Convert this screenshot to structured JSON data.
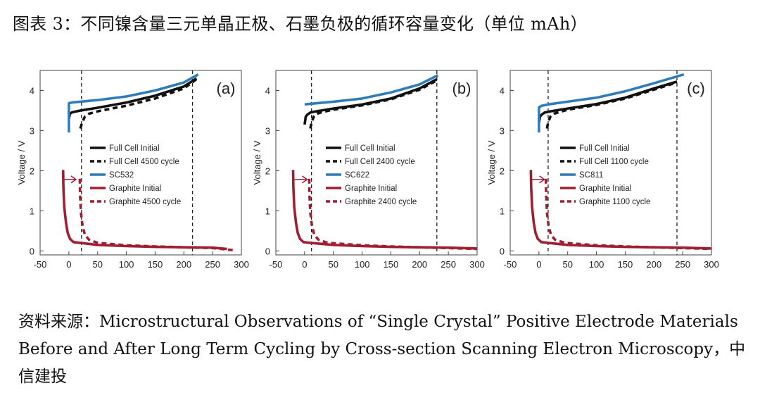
{
  "title": "图表 3：不同镍含量三元单晶正极、石墨负极的循环容量变化（单位 mAh）",
  "source": "资料来源：Microstructural Observations of “Single Crystal” Positive Electrode Materials Before and After Long Term Cycling by Cross-section Scanning Electron Microscopy，中信建投",
  "colors": {
    "black": "#111111",
    "blue": "#2e7db8",
    "red": "#a01e32"
  },
  "chart_data": [
    {
      "type": "line",
      "panel_label": "(a)",
      "ylabel": "Voltage / V",
      "xlim": [
        -50,
        300
      ],
      "ylim": [
        -0.1,
        4.5
      ],
      "xticks": [
        "-50",
        "0",
        "50",
        "100",
        "150",
        "200",
        "250",
        "300"
      ],
      "yticks": [
        "0",
        "1",
        "2",
        "3",
        "4"
      ],
      "vlines": [
        22,
        215
      ],
      "arrow": {
        "x": 5,
        "y": 1.78
      },
      "series": [
        {
          "name": "Full Cell Initial",
          "color": "#111111",
          "dashed": false,
          "x": [
            0,
            2,
            5,
            10,
            20,
            50,
            100,
            150,
            200,
            222
          ],
          "y": [
            3.3,
            3.42,
            3.45,
            3.47,
            3.5,
            3.57,
            3.7,
            3.87,
            4.1,
            4.3
          ]
        },
        {
          "name": "Full Cell 4500 cycle",
          "color": "#111111",
          "dashed": true,
          "x": [
            20,
            23,
            28,
            35,
            50,
            100,
            150,
            200,
            222
          ],
          "y": [
            3.05,
            3.2,
            3.35,
            3.42,
            3.48,
            3.62,
            3.8,
            4.05,
            4.28
          ]
        },
        {
          "name": "SC532",
          "color": "#2e7db8",
          "dashed": false,
          "x": [
            0,
            0,
            5,
            20,
            50,
            100,
            150,
            200,
            225
          ],
          "y": [
            2.95,
            3.68,
            3.7,
            3.72,
            3.76,
            3.85,
            4.0,
            4.2,
            4.4
          ]
        },
        {
          "name": "Graphite Initial",
          "color": "#a01e32",
          "dashed": false,
          "x": [
            -10,
            -9.5,
            -8,
            -5,
            -2,
            2,
            8,
            20,
            50,
            100,
            150,
            200,
            250,
            275
          ],
          "y": [
            2.02,
            1.6,
            1.1,
            0.7,
            0.45,
            0.3,
            0.22,
            0.2,
            0.15,
            0.12,
            0.1,
            0.09,
            0.08,
            0.05
          ]
        },
        {
          "name": "Graphite 4500 cycle",
          "color": "#a01e32",
          "dashed": true,
          "x": [
            19,
            19.5,
            21,
            24,
            28,
            35,
            50,
            100,
            150,
            200,
            250,
            285
          ],
          "y": [
            1.8,
            1.4,
            0.95,
            0.6,
            0.4,
            0.28,
            0.2,
            0.14,
            0.11,
            0.09,
            0.07,
            0.02
          ]
        }
      ]
    },
    {
      "type": "line",
      "panel_label": "(b)",
      "ylabel": "Voltage / V",
      "xlim": [
        -50,
        300
      ],
      "ylim": [
        -0.1,
        4.5
      ],
      "xticks": [
        "-50",
        "0",
        "50",
        "100",
        "150",
        "200",
        "250",
        "300"
      ],
      "yticks": [
        "0",
        "1",
        "2",
        "3",
        "4"
      ],
      "vlines": [
        12,
        230
      ],
      "arrow": {
        "x": -3,
        "y": 1.78
      },
      "series": [
        {
          "name": "Full Cell Initial",
          "color": "#111111",
          "dashed": false,
          "x": [
            0,
            2,
            5,
            10,
            20,
            50,
            100,
            150,
            200,
            230
          ],
          "y": [
            3.15,
            3.35,
            3.4,
            3.45,
            3.48,
            3.55,
            3.65,
            3.8,
            4.05,
            4.28
          ]
        },
        {
          "name": "Full Cell 2400 cycle",
          "color": "#111111",
          "dashed": true,
          "x": [
            10,
            12,
            16,
            22,
            30,
            50,
            100,
            150,
            200,
            230
          ],
          "y": [
            3.05,
            3.2,
            3.35,
            3.42,
            3.46,
            3.52,
            3.63,
            3.78,
            4.02,
            4.25
          ]
        },
        {
          "name": "SC622",
          "color": "#2e7db8",
          "dashed": false,
          "x": [
            0,
            5,
            20,
            50,
            100,
            150,
            200,
            232
          ],
          "y": [
            3.65,
            3.66,
            3.68,
            3.72,
            3.8,
            3.95,
            4.15,
            4.38
          ]
        },
        {
          "name": "Graphite Initial",
          "color": "#a01e32",
          "dashed": false,
          "x": [
            -20,
            -19.5,
            -18,
            -15,
            -12,
            -8,
            -2,
            10,
            50,
            100,
            150,
            200,
            250,
            300
          ],
          "y": [
            2.02,
            1.6,
            1.1,
            0.7,
            0.45,
            0.3,
            0.22,
            0.2,
            0.15,
            0.12,
            0.1,
            0.09,
            0.08,
            0.06
          ]
        },
        {
          "name": "Graphite 2400 cycle",
          "color": "#a01e32",
          "dashed": true,
          "x": [
            8,
            8.5,
            10,
            13,
            17,
            24,
            40,
            100,
            150,
            200,
            250,
            300
          ],
          "y": [
            1.8,
            1.4,
            0.95,
            0.6,
            0.4,
            0.28,
            0.2,
            0.14,
            0.11,
            0.09,
            0.07,
            0.05
          ]
        }
      ]
    },
    {
      "type": "line",
      "panel_label": "(c)",
      "ylabel": "Voltage / V",
      "xlim": [
        -50,
        300
      ],
      "ylim": [
        -0.1,
        4.5
      ],
      "xticks": [
        "-50",
        "0",
        "50",
        "100",
        "150",
        "200",
        "250",
        "300"
      ],
      "yticks": [
        "0",
        "1",
        "2",
        "3",
        "4"
      ],
      "vlines": [
        16,
        240
      ],
      "arrow": {
        "x": 2,
        "y": 1.78
      },
      "series": [
        {
          "name": "Full Cell Initial",
          "color": "#111111",
          "dashed": false,
          "x": [
            0,
            2,
            5,
            10,
            20,
            50,
            100,
            150,
            200,
            240
          ],
          "y": [
            3.2,
            3.35,
            3.4,
            3.45,
            3.48,
            3.55,
            3.66,
            3.82,
            4.05,
            4.22
          ]
        },
        {
          "name": "Full Cell 1100 cycle",
          "color": "#111111",
          "dashed": true,
          "x": [
            14,
            16,
            20,
            26,
            35,
            50,
            100,
            150,
            200,
            240
          ],
          "y": [
            3.05,
            3.2,
            3.35,
            3.42,
            3.46,
            3.52,
            3.64,
            3.8,
            4.02,
            4.2
          ]
        },
        {
          "name": "SC811",
          "color": "#2e7db8",
          "dashed": false,
          "x": [
            0,
            0,
            5,
            20,
            50,
            100,
            150,
            200,
            252
          ],
          "y": [
            2.95,
            3.58,
            3.62,
            3.66,
            3.72,
            3.82,
            3.98,
            4.18,
            4.4
          ]
        },
        {
          "name": "Graphite Initial",
          "color": "#a01e32",
          "dashed": false,
          "x": [
            -14,
            -13.5,
            -12,
            -9,
            -6,
            -2,
            4,
            16,
            50,
            100,
            150,
            200,
            250,
            300
          ],
          "y": [
            2.02,
            1.6,
            1.1,
            0.7,
            0.45,
            0.3,
            0.22,
            0.2,
            0.15,
            0.12,
            0.1,
            0.09,
            0.08,
            0.06
          ]
        },
        {
          "name": "Graphite 1100 cycle",
          "color": "#a01e32",
          "dashed": true,
          "x": [
            12,
            12.5,
            14,
            17,
            21,
            28,
            45,
            100,
            150,
            200,
            250,
            300
          ],
          "y": [
            1.8,
            1.4,
            0.95,
            0.6,
            0.4,
            0.28,
            0.2,
            0.14,
            0.11,
            0.09,
            0.07,
            0.05
          ]
        }
      ]
    }
  ]
}
